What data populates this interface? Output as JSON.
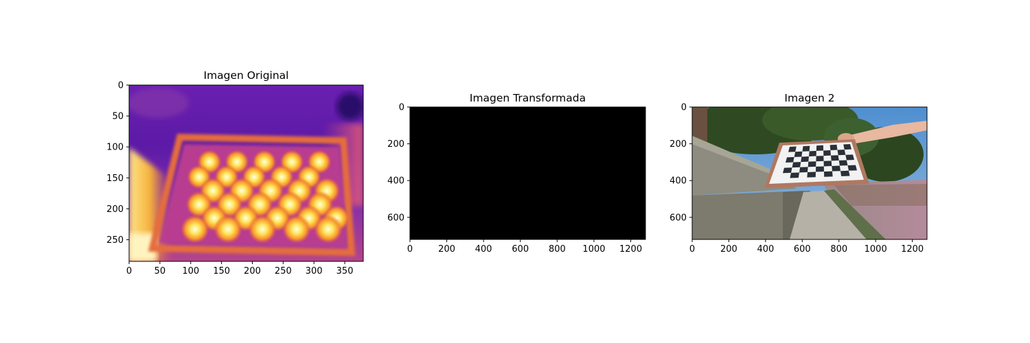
{
  "chart_data": [
    {
      "type": "heatmap",
      "title": "Imagen Original",
      "xlabel": "",
      "ylabel": "",
      "xlim": [
        0,
        380
      ],
      "ylim": [
        285,
        0
      ],
      "xticks": [
        0,
        50,
        100,
        150,
        200,
        250,
        300,
        350
      ],
      "yticks": [
        0,
        50,
        100,
        150,
        200,
        250
      ],
      "colormap": "plasma",
      "content": "thermal image of a heated checkerboard pattern",
      "grid": false
    },
    {
      "type": "heatmap",
      "title": "Imagen Transformada",
      "xlabel": "",
      "ylabel": "",
      "xlim": [
        0,
        1280
      ],
      "ylim": [
        720,
        0
      ],
      "xticks": [
        0,
        200,
        400,
        600,
        800,
        1000,
        1200
      ],
      "yticks": [
        0,
        200,
        400,
        600
      ],
      "fill_color": "#000000",
      "grid": false
    },
    {
      "type": "heatmap",
      "title": "Imagen 2",
      "xlabel": "",
      "ylabel": "",
      "xlim": [
        0,
        1280
      ],
      "ylim": [
        720,
        0
      ],
      "xticks": [
        0,
        200,
        400,
        600,
        800,
        1000,
        1200
      ],
      "yticks": [
        0,
        200,
        400,
        600
      ],
      "content": "photo of a hand holding a checkerboard calibration board outdoors",
      "grid": false
    }
  ]
}
